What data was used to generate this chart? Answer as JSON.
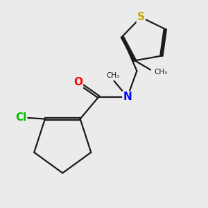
{
  "background_color": "#ebebeb",
  "bond_color": "#1a1a1a",
  "atom_colors": {
    "S": "#c8a800",
    "N": "#0000ff",
    "O": "#ff0000",
    "Cl": "#00bb00",
    "C": "#1a1a1a"
  },
  "font_size": 10,
  "lw": 1.6
}
